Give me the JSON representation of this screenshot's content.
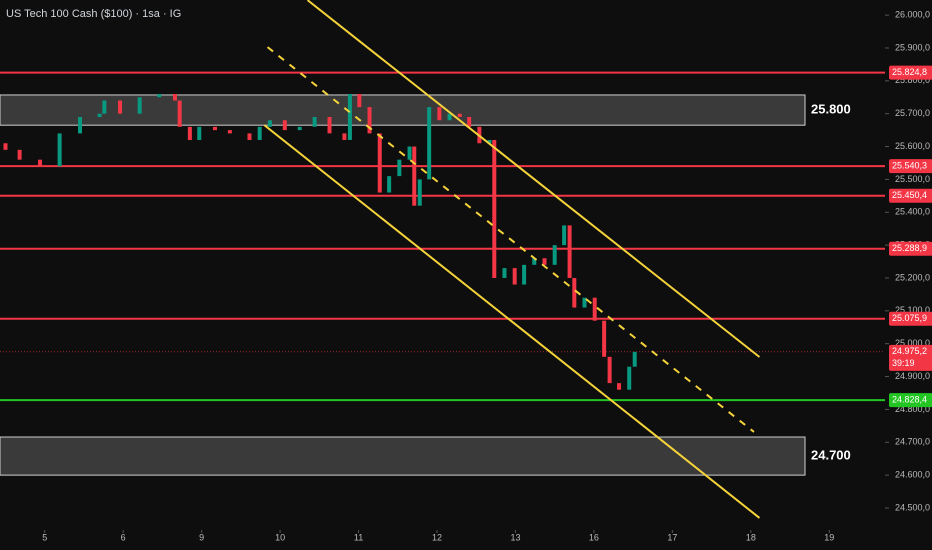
{
  "chart_data": {
    "type": "candlestick",
    "title": "US Tech 100 Cash ($100) · 1sa · IG",
    "xlim": [
      -0.57,
      10.71
    ],
    "ylim": [
      24433,
      26046
    ],
    "xticks": [
      {
        "value": 0,
        "label": "5"
      },
      {
        "value": 1,
        "label": "6"
      },
      {
        "value": 2,
        "label": "9"
      },
      {
        "value": 3,
        "label": "10"
      },
      {
        "value": 4,
        "label": "11"
      },
      {
        "value": 5,
        "label": "12"
      },
      {
        "value": 6,
        "label": "13"
      },
      {
        "value": 7,
        "label": "16"
      },
      {
        "value": 8,
        "label": "17"
      },
      {
        "value": 9,
        "label": "18"
      },
      {
        "value": 10,
        "label": "19"
      }
    ],
    "yticks": [
      {
        "value": 24500,
        "label": "24.500,0"
      },
      {
        "value": 24600,
        "label": "24.600,0"
      },
      {
        "value": 24700,
        "label": "24.700,0"
      },
      {
        "value": 24800,
        "label": "24.800,0"
      },
      {
        "value": 24900,
        "label": "24.900,0"
      },
      {
        "value": 25000,
        "label": "25.000,0"
      },
      {
        "value": 25100,
        "label": "25.100,0"
      },
      {
        "value": 25200,
        "label": "25.200,0"
      },
      {
        "value": 25300,
        "label": "25.300,0"
      },
      {
        "value": 25400,
        "label": "25.400,0"
      },
      {
        "value": 25500,
        "label": "25.500,0"
      },
      {
        "value": 25600,
        "label": "25.600,0"
      },
      {
        "value": 25700,
        "label": "25.700,0"
      },
      {
        "value": 25800,
        "label": "25.800,0"
      },
      {
        "value": 25900,
        "label": "25.900,0"
      },
      {
        "value": 26000,
        "label": "26.000,0"
      }
    ],
    "up_color": "#089981",
    "down_color": "#f23645",
    "x": [
      -0.5,
      -0.32,
      -0.06,
      0.19,
      0.45,
      0.7,
      0.76,
      0.96,
      1.21,
      1.46,
      1.66,
      1.72,
      1.85,
      1.97,
      2.17,
      2.36,
      2.61,
      2.74,
      2.87,
      3.06,
      3.25,
      3.44,
      3.63,
      3.82,
      3.89,
      4.01,
      4.14,
      4.27,
      4.39,
      4.52,
      4.65,
      4.71,
      4.78,
      4.9,
      5.03,
      5.16,
      5.29,
      5.41,
      5.54,
      5.67,
      5.73,
      5.86,
      5.99,
      6.11,
      6.24,
      6.37,
      6.5,
      6.62,
      6.69,
      6.75,
      6.88,
      7.01,
      7.13,
      7.2,
      7.32,
      7.45,
      7.52
    ],
    "open": [
      25610,
      25590,
      25560,
      25540,
      25640,
      25690,
      25700,
      25740,
      25700,
      25750,
      25760,
      25740,
      25660,
      25620,
      25660,
      25650,
      25640,
      25620,
      25660,
      25680,
      25650,
      25660,
      25690,
      25640,
      25620,
      25760,
      25720,
      25640,
      25460,
      25510,
      25560,
      25600,
      25420,
      25500,
      25720,
      25680,
      25700,
      25690,
      25660,
      25610,
      25620,
      25200,
      25230,
      25180,
      25240,
      25260,
      25240,
      25300,
      25360,
      25200,
      25110,
      25140,
      25070,
      24960,
      24880,
      24860,
      24930
    ],
    "close": [
      25590,
      25560,
      25540,
      25640,
      25690,
      25700,
      25740,
      25700,
      25750,
      25760,
      25740,
      25660,
      25620,
      25660,
      25650,
      25640,
      25620,
      25660,
      25680,
      25650,
      25660,
      25690,
      25640,
      25620,
      25760,
      25720,
      25640,
      25460,
      25510,
      25560,
      25600,
      25420,
      25500,
      25720,
      25680,
      25700,
      25690,
      25660,
      25610,
      25620,
      25200,
      25230,
      25180,
      25240,
      25260,
      25240,
      25300,
      25360,
      25200,
      25110,
      25140,
      25070,
      24960,
      24880,
      24860,
      24930,
      24975
    ],
    "zones": [
      {
        "low": 25665,
        "high": 25757,
        "label": "25.800"
      },
      {
        "low": 24600,
        "high": 24716,
        "label": "24.700"
      }
    ],
    "levels": [
      {
        "value": 25824.8,
        "label": "25.824,8",
        "color": "#f23645"
      },
      {
        "value": 25540.3,
        "label": "25.540,3",
        "color": "#f23645"
      },
      {
        "value": 25450.4,
        "label": "25.450,4",
        "color": "#f23645"
      },
      {
        "value": 25288.9,
        "label": "25.288,9",
        "color": "#f23645"
      },
      {
        "value": 25075.9,
        "label": "25.075,9",
        "color": "#f23645"
      },
      {
        "value": 24828.4,
        "label": "24.828,4",
        "color": "#22c522"
      }
    ],
    "last_price": {
      "value": 24975.2,
      "label": "24.975,2",
      "countdown": "39:19"
    },
    "channel": [
      {
        "x": [
          3.35,
          9.11
        ],
        "y": [
          26045.6,
          24959.5
        ],
        "dashed": false
      },
      {
        "x": [
          2.8,
          9.11
        ],
        "y": [
          25665,
          24469.7
        ],
        "dashed": false
      },
      {
        "x": [
          2.84,
          9.04
        ],
        "y": [
          25902.6,
          24731.4
        ],
        "dashed": true
      }
    ],
    "channel_color": "#f5d33a"
  }
}
